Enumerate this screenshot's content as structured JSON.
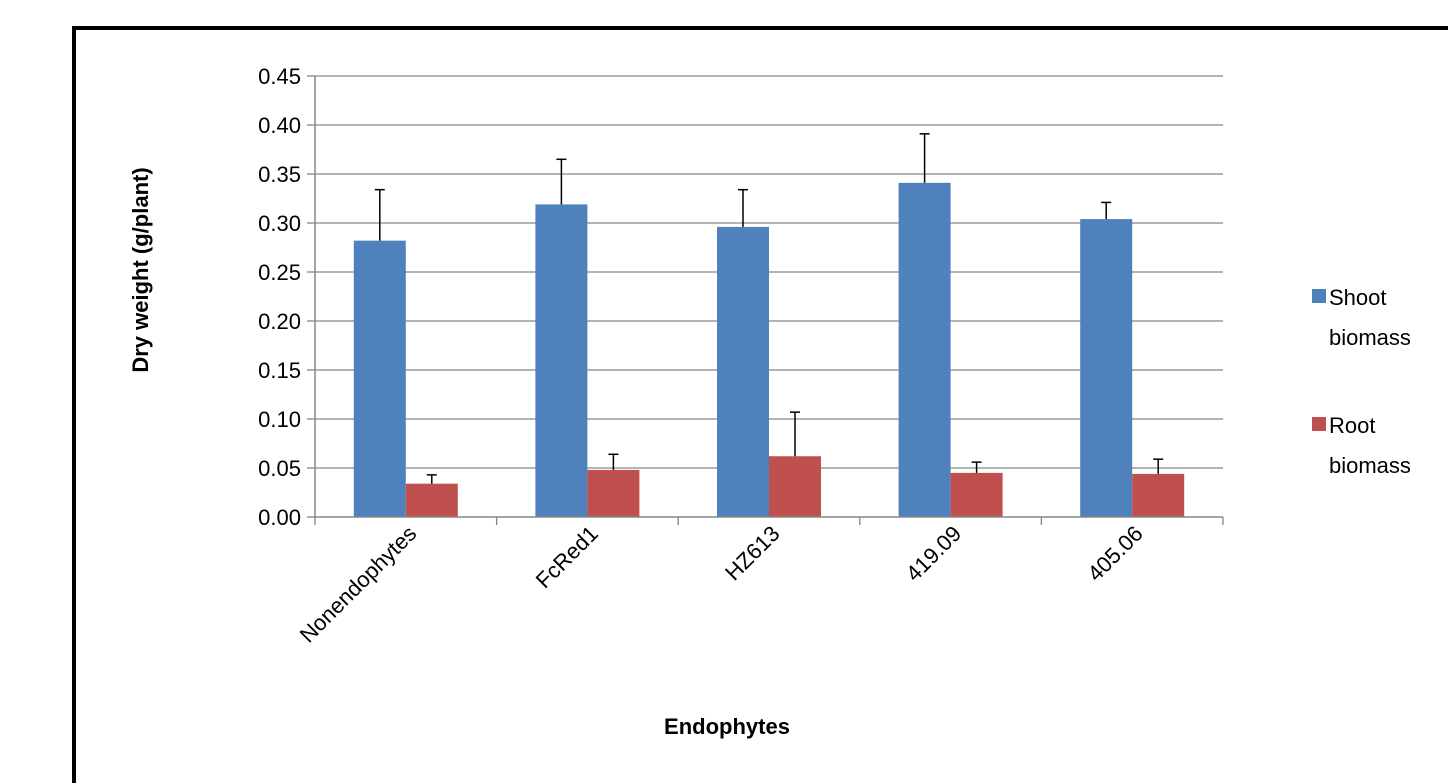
{
  "chart_data": {
    "type": "bar",
    "title": "",
    "xlabel": "Endophytes",
    "ylabel": "Dry weight (g/plant)",
    "categories": [
      "Nonendophytes",
      "FcRed1",
      "HZ613",
      "419.09",
      "405.06"
    ],
    "series": [
      {
        "name": "Shoot biomass",
        "legend_lines": [
          "Shoot",
          "biomass"
        ],
        "color": "#4F81BD",
        "values": [
          0.282,
          0.319,
          0.296,
          0.341,
          0.304
        ],
        "errors": [
          0.052,
          0.046,
          0.038,
          0.05,
          0.017
        ]
      },
      {
        "name": "Root biomass",
        "legend_lines": [
          "Root",
          "biomass"
        ],
        "color": "#C0504D",
        "values": [
          0.034,
          0.048,
          0.062,
          0.045,
          0.044
        ],
        "errors": [
          0.009,
          0.016,
          0.045,
          0.011,
          0.015
        ]
      }
    ],
    "ylim": [
      0,
      0.45
    ],
    "yticks": [
      "0.00",
      "0.05",
      "0.10",
      "0.15",
      "0.20",
      "0.25",
      "0.30",
      "0.35",
      "0.40",
      "0.45"
    ],
    "grid": true,
    "legend_position": "right",
    "gridline_color": "#868686",
    "frame_color": "#000000",
    "error_bar_color": "#000000"
  }
}
